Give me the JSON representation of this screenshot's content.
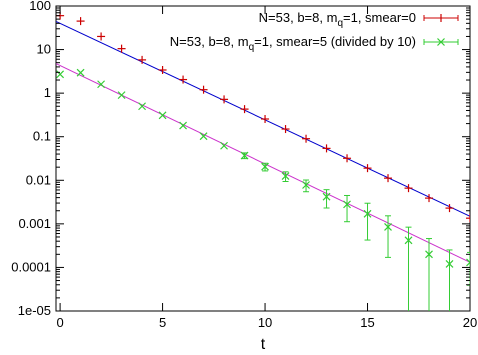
{
  "chart_data": {
    "type": "scatter",
    "xlabel": "t",
    "ylabel": "",
    "title": "",
    "xlim": [
      -0.2,
      20
    ],
    "ylim": [
      1e-05,
      100
    ],
    "yscale": "log",
    "x_ticks": [
      0,
      5,
      10,
      15,
      20
    ],
    "x_tick_labels": [
      "0",
      "5",
      "10",
      "15",
      "20"
    ],
    "y_ticks": [
      1e-05,
      0.0001,
      0.001,
      0.01,
      0.1,
      1,
      10,
      100
    ],
    "y_tick_labels": [
      "1e-05",
      "0.0001",
      "0.001",
      "0.01",
      "0.1",
      "1",
      "10",
      "100"
    ],
    "grid": false,
    "legend_position": "top-right",
    "series": [
      {
        "name": "N=53, b=8, m",
        "name_sub": "q",
        "name_rest": "=1, smear=0",
        "marker": "plus",
        "color": "#cc0000",
        "fit_color": "#0000cc",
        "fit": {
          "a": 40,
          "b": 0.51
        },
        "points": [
          {
            "x": 0,
            "y": 60,
            "err": 0
          },
          {
            "x": 1,
            "y": 45,
            "err": 0
          },
          {
            "x": 2,
            "y": 20,
            "err": 0
          },
          {
            "x": 3,
            "y": 10.5,
            "err": 0
          },
          {
            "x": 4,
            "y": 5.8,
            "err": 0
          },
          {
            "x": 5,
            "y": 3.4,
            "err": 0
          },
          {
            "x": 6,
            "y": 2.05,
            "err": 0
          },
          {
            "x": 7,
            "y": 1.2,
            "err": 0
          },
          {
            "x": 8,
            "y": 0.72,
            "err": 0
          },
          {
            "x": 9,
            "y": 0.43,
            "err": 0
          },
          {
            "x": 10,
            "y": 0.255,
            "err": 0
          },
          {
            "x": 11,
            "y": 0.15,
            "err": 0
          },
          {
            "x": 12,
            "y": 0.09,
            "err": 0
          },
          {
            "x": 13,
            "y": 0.054,
            "err": 0
          },
          {
            "x": 14,
            "y": 0.032,
            "err": 0
          },
          {
            "x": 15,
            "y": 0.019,
            "err": 0
          },
          {
            "x": 16,
            "y": 0.0112,
            "err": 0
          },
          {
            "x": 17,
            "y": 0.0066,
            "err": 0
          },
          {
            "x": 18,
            "y": 0.0039,
            "err": 0
          },
          {
            "x": 19,
            "y": 0.0023,
            "err": 0
          },
          {
            "x": 20,
            "y": 0.00135,
            "err": 0
          }
        ]
      },
      {
        "name": "N=53, b=8, m",
        "name_sub": "q",
        "name_rest": "=1, smear=5 (divided by 10)",
        "marker": "cross",
        "color": "#33cc33",
        "fit_color": "#cc33cc",
        "fit": {
          "a": 4.3,
          "b": 0.52
        },
        "points": [
          {
            "x": 0,
            "y": 2.7,
            "err": 0
          },
          {
            "x": 1,
            "y": 2.95,
            "err": 0
          },
          {
            "x": 2,
            "y": 1.6,
            "err": 0
          },
          {
            "x": 3,
            "y": 0.9,
            "err": 0
          },
          {
            "x": 4,
            "y": 0.5,
            "err": 0
          },
          {
            "x": 5,
            "y": 0.31,
            "err": 0
          },
          {
            "x": 6,
            "y": 0.18,
            "err": 0
          },
          {
            "x": 7,
            "y": 0.103,
            "err": 0
          },
          {
            "x": 8,
            "y": 0.062,
            "err": 0
          },
          {
            "x": 9,
            "y": 0.037,
            "err": 0.15
          },
          {
            "x": 10,
            "y": 0.0205,
            "err": 0.2
          },
          {
            "x": 11,
            "y": 0.0125,
            "err": 0.25
          },
          {
            "x": 12,
            "y": 0.0078,
            "err": 0.3
          },
          {
            "x": 13,
            "y": 0.0042,
            "err": 0.45
          },
          {
            "x": 14,
            "y": 0.0028,
            "err": 0.6
          },
          {
            "x": 15,
            "y": 0.0017,
            "err": 0.75
          },
          {
            "x": 16,
            "y": 0.00085,
            "err": 0.8
          },
          {
            "x": 17,
            "y": 0.00042,
            "err": 1.0
          },
          {
            "x": 18,
            "y": 0.0002,
            "err": 1.3
          },
          {
            "x": 19,
            "y": 0.00012,
            "err": 1.1
          },
          {
            "x": 20,
            "y": 0.00013,
            "err": 0.7
          }
        ]
      }
    ]
  }
}
